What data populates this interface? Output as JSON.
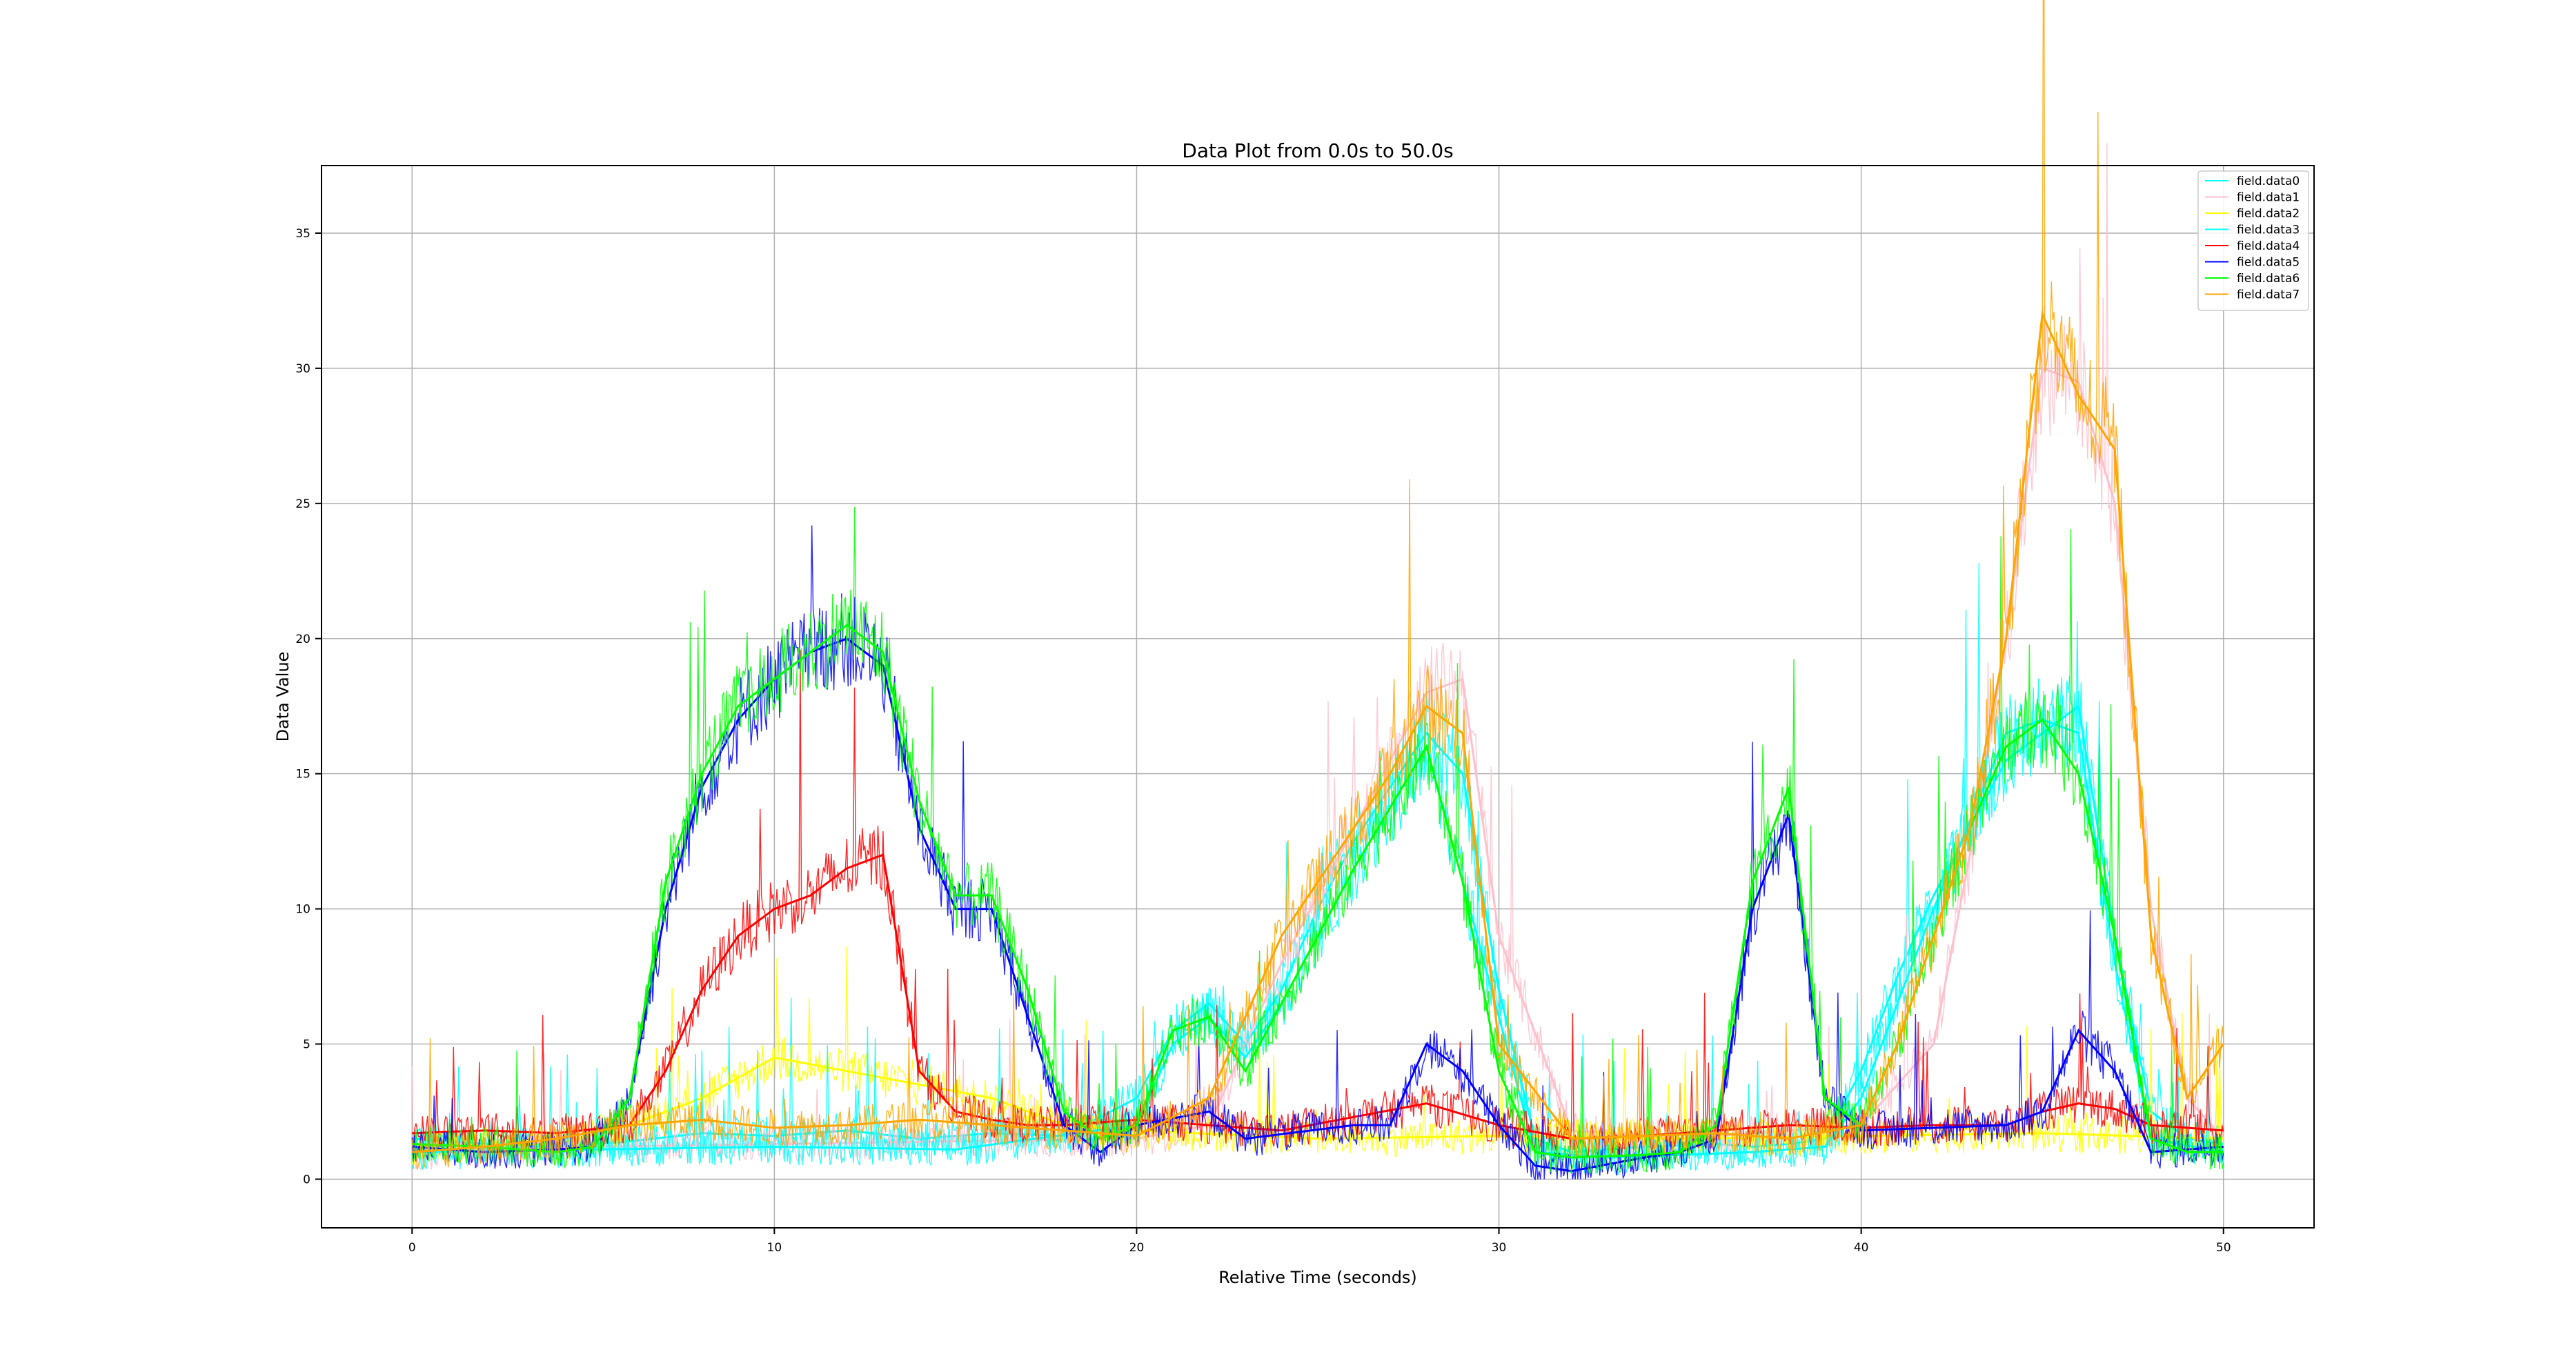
{
  "chart_data": {
    "type": "line",
    "title": "Data Plot from 0.0s to 50.0s",
    "xlabel": "Relative Time (seconds)",
    "ylabel": "Data Value",
    "xlim": [
      -2.5,
      52.5
    ],
    "ylim": [
      -1.8,
      37.5
    ],
    "xticks": [
      0,
      10,
      20,
      30,
      40,
      50
    ],
    "yticks": [
      0,
      5,
      10,
      15,
      20,
      25,
      30,
      35
    ],
    "grid": true,
    "legend_position": "top-right",
    "series": [
      {
        "name": "field.data0",
        "color": "#00ffff",
        "x": [
          0,
          2,
          4,
          6,
          8,
          10,
          12,
          14,
          16,
          18,
          20,
          21,
          22,
          23,
          24,
          25,
          26,
          27,
          28,
          29,
          30,
          31,
          32,
          34,
          36,
          37,
          38,
          39,
          40,
          41,
          42,
          43,
          44,
          45,
          46,
          47,
          48,
          49,
          50
        ],
        "y": [
          1.5,
          1.3,
          1.2,
          1.4,
          1.7,
          1.6,
          1.8,
          1.5,
          1.7,
          1.6,
          3.0,
          5.5,
          6.5,
          5.0,
          7.0,
          10.0,
          12.5,
          14.5,
          16.5,
          15.0,
          7.0,
          1.5,
          1.0,
          1.2,
          1.3,
          1.2,
          1.3,
          1.5,
          4.0,
          7.5,
          10.5,
          13.0,
          15.5,
          16.5,
          17.5,
          9.0,
          2.5,
          1.5,
          1.3
        ]
      },
      {
        "name": "field.data1",
        "color": "#ffc0cb",
        "x": [
          0,
          5,
          10,
          15,
          20,
          22,
          24,
          26,
          28,
          29,
          30,
          32,
          35,
          40,
          42,
          43,
          44,
          45,
          46,
          47,
          48,
          49,
          50
        ],
        "y": [
          1.0,
          1.2,
          1.3,
          1.4,
          1.5,
          2.0,
          8.0,
          13.0,
          18.0,
          18.5,
          9.0,
          1.8,
          1.5,
          2.0,
          5.0,
          12.0,
          20.0,
          30.0,
          29.5,
          25.0,
          10.0,
          3.0,
          1.5
        ]
      },
      {
        "name": "field.data2",
        "color": "#ffff00",
        "x": [
          0,
          4,
          6,
          8,
          10,
          12,
          14,
          16,
          18,
          20,
          25,
          30,
          35,
          40,
          45,
          50
        ],
        "y": [
          1.2,
          1.3,
          2.0,
          3.0,
          4.5,
          4.0,
          3.5,
          3.0,
          2.0,
          1.8,
          1.5,
          1.6,
          1.5,
          1.6,
          1.7,
          1.5
        ]
      },
      {
        "name": "field.data3",
        "color": "#00ffff",
        "x": [
          0,
          5,
          10,
          15,
          20,
          21,
          22,
          23,
          24,
          26,
          28,
          30,
          31,
          33,
          35,
          37,
          39,
          40,
          42,
          44,
          45,
          46,
          47,
          48,
          50
        ],
        "y": [
          1.0,
          1.1,
          1.2,
          1.1,
          2.0,
          5.0,
          6.0,
          4.5,
          6.5,
          11.5,
          16.0,
          6.0,
          1.0,
          0.8,
          0.9,
          1.0,
          1.2,
          3.0,
          10.0,
          16.5,
          17.0,
          16.5,
          8.0,
          1.5,
          1.0
        ]
      },
      {
        "name": "field.data4",
        "color": "#ff0000",
        "x": [
          0,
          2,
          4,
          6,
          7,
          8,
          9,
          10,
          11,
          12,
          13,
          14,
          15,
          16,
          17,
          18,
          20,
          24,
          28,
          30,
          32,
          34,
          36,
          38,
          40,
          42,
          44,
          45,
          46,
          47,
          48,
          50
        ],
        "y": [
          1.7,
          1.8,
          1.7,
          2.0,
          4.0,
          7.0,
          9.0,
          10.0,
          10.5,
          11.5,
          12.0,
          4.0,
          2.5,
          2.2,
          2.0,
          2.0,
          2.2,
          1.8,
          2.8,
          2.0,
          1.5,
          1.6,
          1.8,
          2.0,
          1.9,
          2.0,
          2.0,
          2.5,
          2.8,
          2.6,
          2.0,
          1.8
        ]
      },
      {
        "name": "field.data5",
        "color": "#0000ff",
        "x": [
          0,
          2,
          4,
          5,
          6,
          7,
          8,
          9,
          10,
          11,
          12,
          13,
          14,
          15,
          16,
          17,
          18,
          19,
          20,
          22,
          23,
          26,
          27,
          28,
          29,
          30,
          31,
          32,
          34,
          35,
          36,
          37,
          38,
          39,
          40,
          44,
          45,
          46,
          47,
          48,
          50
        ],
        "y": [
          1.2,
          1.0,
          1.1,
          1.2,
          3.0,
          10.0,
          14.5,
          17.0,
          18.5,
          19.5,
          20.0,
          19.0,
          13.0,
          10.0,
          10.0,
          6.0,
          2.0,
          1.0,
          2.0,
          2.5,
          1.5,
          2.0,
          2.0,
          5.0,
          4.0,
          2.0,
          0.5,
          0.3,
          0.8,
          1.0,
          1.5,
          10.0,
          13.5,
          3.0,
          1.8,
          2.0,
          2.5,
          5.5,
          4.0,
          1.0,
          1.2
        ]
      },
      {
        "name": "field.data6",
        "color": "#00ff00",
        "x": [
          0,
          2,
          4,
          5,
          6,
          7,
          8,
          9,
          10,
          11,
          12,
          13,
          14,
          15,
          16,
          17,
          18,
          19,
          20,
          21,
          22,
          23,
          24,
          26,
          28,
          29,
          30,
          31,
          32,
          34,
          35,
          36,
          37,
          38,
          39,
          40,
          41,
          42,
          43,
          44,
          45,
          46,
          47,
          48,
          49,
          50
        ],
        "y": [
          1.3,
          1.2,
          1.0,
          1.2,
          3.0,
          11.0,
          15.0,
          17.5,
          18.5,
          19.5,
          20.5,
          19.5,
          14.0,
          10.5,
          10.5,
          7.0,
          2.5,
          1.5,
          2.0,
          5.5,
          6.0,
          4.0,
          6.5,
          11.5,
          16.0,
          11.0,
          4.0,
          1.0,
          0.8,
          0.9,
          1.0,
          2.0,
          11.0,
          14.5,
          3.0,
          2.0,
          5.0,
          9.0,
          13.0,
          16.0,
          17.0,
          15.0,
          9.0,
          1.5,
          1.0,
          1.0
        ]
      },
      {
        "name": "field.data7",
        "color": "#ffa500",
        "x": [
          0,
          2,
          4,
          6,
          8,
          10,
          12,
          14,
          16,
          18,
          20,
          22,
          23,
          24,
          25,
          26,
          27,
          28,
          29,
          30,
          32,
          34,
          36,
          38,
          40,
          41,
          42,
          43,
          44,
          45,
          46,
          47,
          48,
          49,
          50
        ],
        "y": [
          1.0,
          1.2,
          1.5,
          2.0,
          2.2,
          1.9,
          2.0,
          2.2,
          2.0,
          1.8,
          1.6,
          3.0,
          6.0,
          9.0,
          11.0,
          13.0,
          15.0,
          17.5,
          16.5,
          5.0,
          1.5,
          1.6,
          1.7,
          1.5,
          2.0,
          5.0,
          9.0,
          13.0,
          20.0,
          32.0,
          29.0,
          27.0,
          9.0,
          3.0,
          5.0
        ]
      }
    ]
  }
}
